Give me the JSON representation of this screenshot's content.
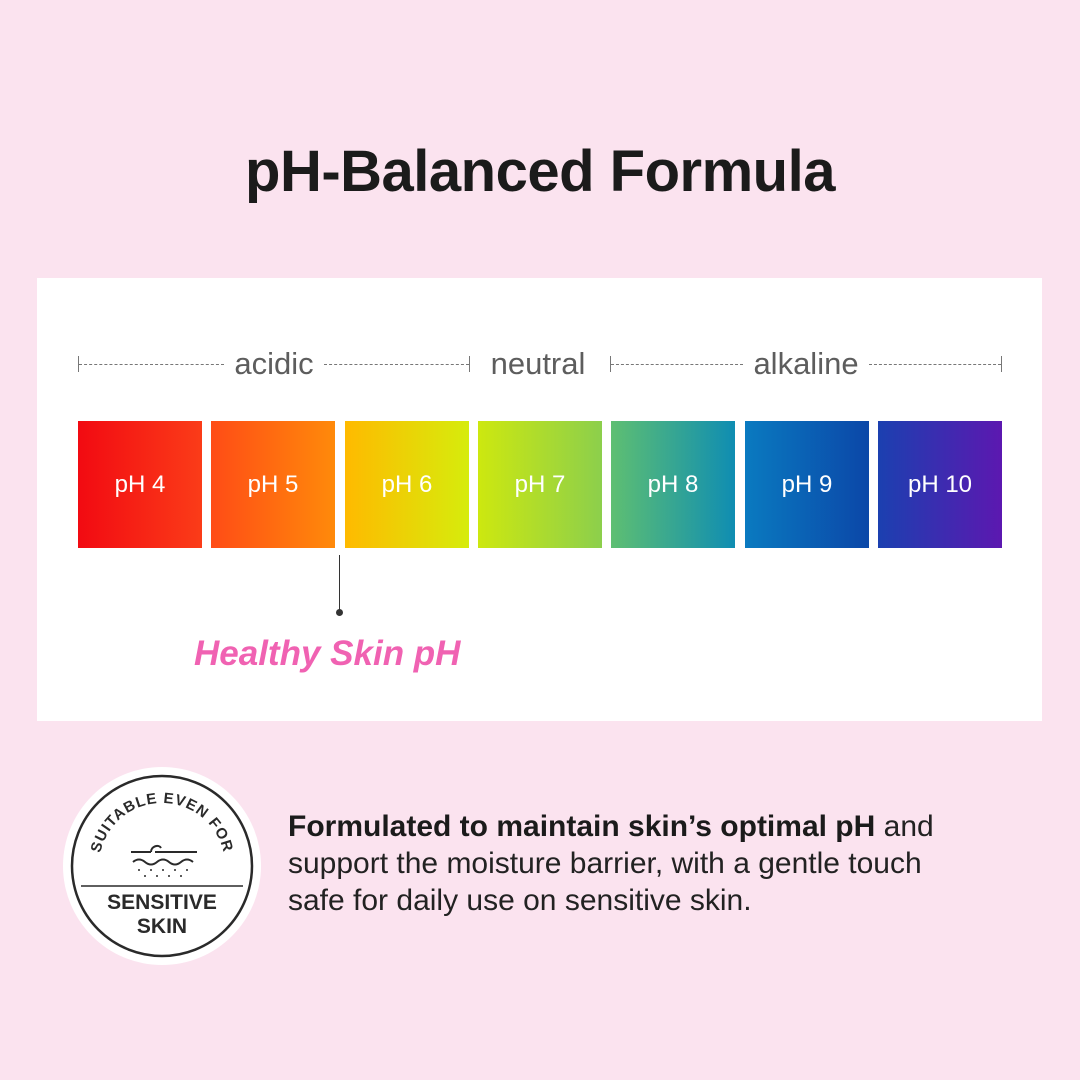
{
  "title": "pH-Balanced Formula",
  "ranges": {
    "acidic": "acidic",
    "neutral": "neutral",
    "alkaline": "alkaline"
  },
  "scale": [
    {
      "label": "pH 4",
      "from": "#f20a12",
      "to": "#fb3c18"
    },
    {
      "label": "pH 5",
      "from": "#ff4c16",
      "to": "#ff8a0a"
    },
    {
      "label": "pH 6",
      "from": "#ffba00",
      "to": "#d6ec0c"
    },
    {
      "label": "pH 7",
      "from": "#cde80f",
      "to": "#8ccf4c"
    },
    {
      "label": "pH 8",
      "from": "#5ebf72",
      "to": "#0f8db2"
    },
    {
      "label": "pH 9",
      "from": "#0a7ac0",
      "to": "#0b47a8"
    },
    {
      "label": "pH 10",
      "from": "#1b40b0",
      "to": "#5c18b0"
    }
  ],
  "marker": {
    "label": "Healthy Skin pH",
    "color": "#f062b2"
  },
  "badge": {
    "top": "SUITABLE EVEN FOR",
    "line1": "SENSITIVE",
    "line2": "SKIN"
  },
  "description": {
    "bold": "Formulated to maintain skin’s optimal pH",
    "rest1": " and",
    "line2": "support the moisture barrier, with a gentle touch",
    "line3": "safe for daily use on sensitive skin."
  }
}
